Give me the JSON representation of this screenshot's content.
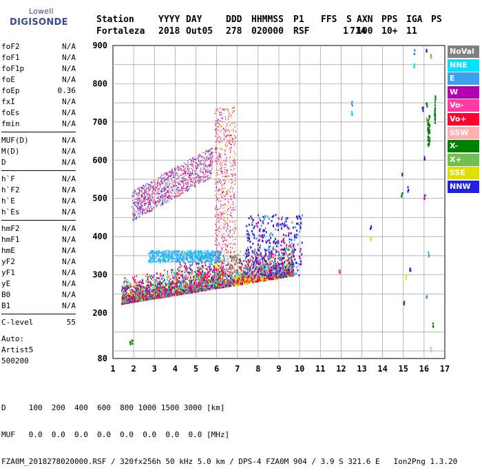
{
  "logo": {
    "line1": "Lowell",
    "line2": "DIGISONDE"
  },
  "header": {
    "labels": [
      "Station",
      "YYYY",
      "DAY",
      "DDD",
      "HHMMSS",
      "P1",
      "FFS",
      "S",
      "AXN",
      "PPS",
      "IGA",
      "PS"
    ],
    "values": [
      "Fortaleza",
      "2018",
      "Out05",
      "278",
      "020000",
      "RSF",
      "1",
      "714",
      "100",
      "10+",
      "11"
    ]
  },
  "parameters": {
    "group1": [
      {
        "k": "foF2",
        "v": "N/A"
      },
      {
        "k": "foF1",
        "v": "N/A"
      },
      {
        "k": "foF1p",
        "v": "N/A"
      },
      {
        "k": "foE",
        "v": "N/A"
      },
      {
        "k": "foEp",
        "v": "0.36"
      },
      {
        "k": "fxI",
        "v": "N/A"
      },
      {
        "k": "foEs",
        "v": "N/A"
      },
      {
        "k": "fmin",
        "v": "N/A"
      }
    ],
    "group2": [
      {
        "k": "MUF(D)",
        "v": "N/A"
      },
      {
        "k": "M(D)",
        "v": "N/A"
      },
      {
        "k": "D",
        "v": "N/A"
      }
    ],
    "group3": [
      {
        "k": "h`F",
        "v": "N/A"
      },
      {
        "k": "h`F2",
        "v": "N/A"
      },
      {
        "k": "h`E",
        "v": "N/A"
      },
      {
        "k": "h`Es",
        "v": "N/A"
      }
    ],
    "group4": [
      {
        "k": "hmF2",
        "v": "N/A"
      },
      {
        "k": "hmF1",
        "v": "N/A"
      },
      {
        "k": "hmE",
        "v": "N/A"
      },
      {
        "k": "yF2",
        "v": "N/A"
      },
      {
        "k": "yF1",
        "v": "N/A"
      },
      {
        "k": "yE",
        "v": "N/A"
      },
      {
        "k": "B0",
        "v": "N/A"
      },
      {
        "k": "B1",
        "v": "N/A"
      }
    ],
    "clevel": {
      "k": "C-level",
      "v": "55"
    }
  },
  "auto": {
    "line1": "Auto:",
    "line2": "Artist5",
    "line3": "500200"
  },
  "legend": [
    {
      "label": "NoVal",
      "color": "#808080"
    },
    {
      "label": "NNE",
      "color": "#00e0ff"
    },
    {
      "label": "E",
      "color": "#3aa0f0"
    },
    {
      "label": "W",
      "color": "#b000b0"
    },
    {
      "label": "Vo-",
      "color": "#ff3aa0"
    },
    {
      "label": "Vo+",
      "color": "#ff0030"
    },
    {
      "label": "SSW",
      "color": "#ffb0b0"
    },
    {
      "label": "X-",
      "color": "#008000"
    },
    {
      "label": "X+",
      "color": "#70c050"
    },
    {
      "label": "SSE",
      "color": "#e0e000"
    },
    {
      "label": "NNW",
      "color": "#2020e0"
    }
  ],
  "axes": {
    "x_ticks": [
      "1",
      "2",
      "3",
      "4",
      "5",
      "6",
      "7",
      "8",
      "9",
      "10",
      "11",
      "12",
      "13",
      "14",
      "15",
      "16",
      "17"
    ],
    "y_ticks": [
      "900",
      "800",
      "700",
      "600",
      "500",
      "400",
      "300",
      "200",
      "80"
    ]
  },
  "bottom": {
    "line1": "D     100  200  400  600  800 1000 1500 3000 [km]",
    "line2": "MUF   0.0  0.0  0.0  0.0  0.0  0.0  0.0  0.0 [MHz]",
    "line3": "FZA0M_2018278020000.RSF / 320fx256h 50 kHz 5.0 km / DPS-4 FZA0M 904 / 3.9 S 321.6 E   Ion2Png 1.3.20"
  }
}
